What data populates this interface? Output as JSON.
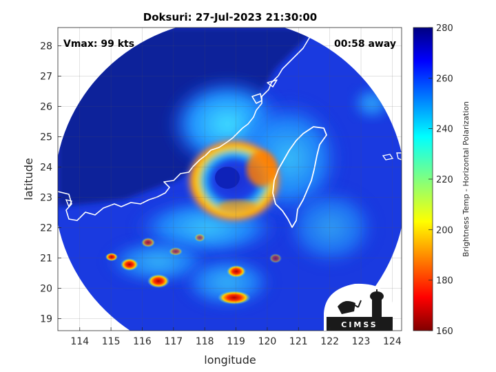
{
  "header": {
    "title": "Doksuri: 27-Jul-2023 21:30:00"
  },
  "annotations": {
    "vmax": "Vmax: 99 kts",
    "timing": "00:58 away"
  },
  "axes": {
    "xlabel": "longitude",
    "ylabel": "latitude",
    "xticks": [
      "114",
      "115",
      "116",
      "117",
      "118",
      "119",
      "120",
      "121",
      "122",
      "123",
      "124"
    ],
    "yticks": [
      "19",
      "20",
      "21",
      "22",
      "23",
      "24",
      "25",
      "26",
      "27",
      "28"
    ],
    "xlim": [
      113.3,
      124.3
    ],
    "ylim": [
      18.6,
      28.6
    ],
    "grid": true
  },
  "colorbar": {
    "label": "Brightness Temp - Horizontal Polarization",
    "ticks": [
      "160",
      "180",
      "200",
      "220",
      "240",
      "260",
      "280"
    ],
    "range": [
      160,
      280
    ],
    "colormap": "jet"
  },
  "logo": {
    "text": "CIMSS"
  },
  "colors": {
    "background_cold": "#0a1e9c",
    "land_outline": "#ffffff",
    "eyewall_warm": "#ff8a00",
    "rainband_hot": "#c40000"
  }
}
